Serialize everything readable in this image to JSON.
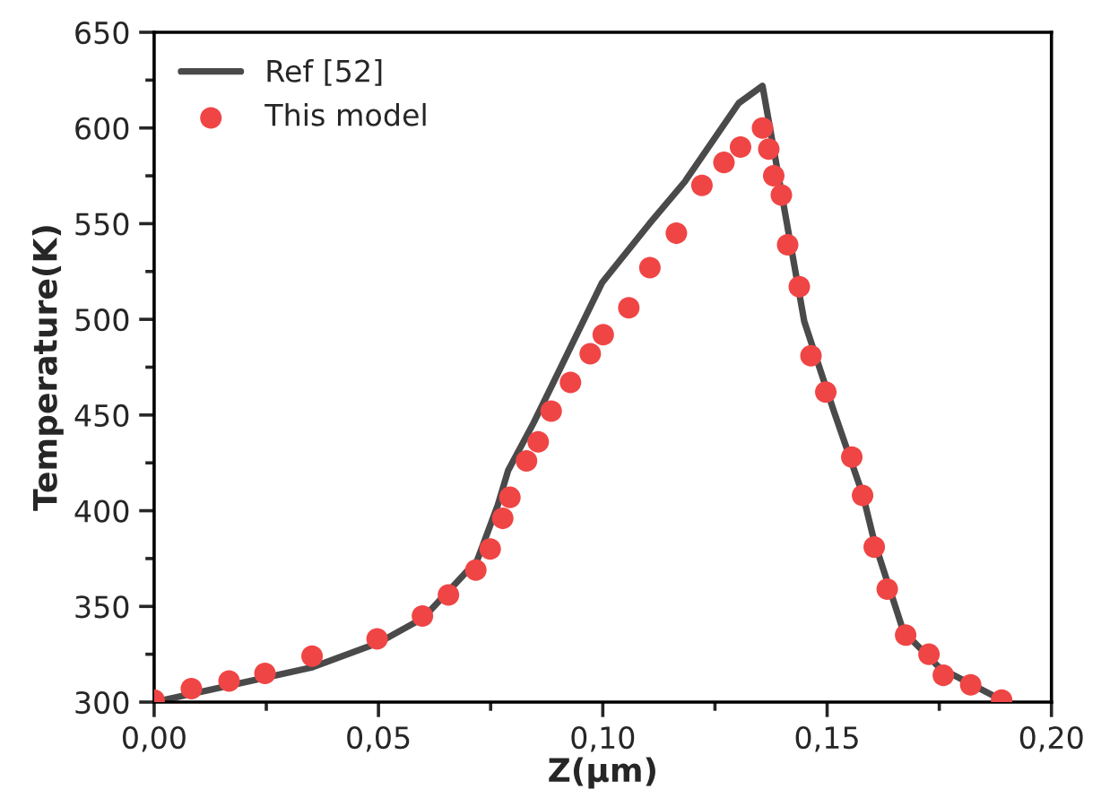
{
  "chart_data": {
    "type": "line",
    "xlabel": "Z(µm)",
    "ylabel": "Temperature(K)",
    "xlim": [
      0,
      0.2
    ],
    "ylim": [
      300,
      650
    ],
    "xticks": [
      {
        "value": 0,
        "label": "0,00"
      },
      {
        "value": 0.05,
        "label": "0,05"
      },
      {
        "value": 0.1,
        "label": "0,10"
      },
      {
        "value": 0.15,
        "label": "0,15"
      },
      {
        "value": 0.2,
        "label": "0,20"
      }
    ],
    "yticks": [
      300,
      350,
      400,
      450,
      500,
      550,
      600,
      650
    ],
    "grid": false,
    "legend": "top left",
    "series": [
      {
        "name": "Ref [52]",
        "color": "#4a4a4a",
        "marker": "none",
        "line_style": "solid",
        "x": [
          0,
          0.035,
          0.05,
          0.06,
          0.072,
          0.0766,
          0.0789,
          0.0846,
          0.0892,
          0.0998,
          0.1104,
          0.1183,
          0.1303,
          0.1356,
          0.1449,
          0.1515,
          0.158,
          0.1605,
          0.167,
          0.175,
          0.189
        ],
        "values": [
          300,
          318,
          331,
          344,
          374,
          403,
          421,
          446,
          468,
          519,
          550,
          572,
          613,
          622,
          499,
          452,
          408,
          384,
          337,
          318,
          301
        ]
      },
      {
        "name": "This model",
        "type": "scatter",
        "color": "#f04545",
        "marker": "circle",
        "x": [
          0,
          0.0083,
          0.0167,
          0.0247,
          0.0352,
          0.0497,
          0.0598,
          0.0656,
          0.0717,
          0.0749,
          0.0777,
          0.0793,
          0.083,
          0.0856,
          0.0885,
          0.0928,
          0.0972,
          0.1001,
          0.1058,
          0.1105,
          0.1164,
          0.1221,
          0.127,
          0.1307,
          0.1356,
          0.137,
          0.1381,
          0.1398,
          0.1412,
          0.1438,
          0.1464,
          0.1497,
          0.1555,
          0.1579,
          0.1605,
          0.1634,
          0.1675,
          0.1727,
          0.1759,
          0.182,
          0.1889
        ],
        "values": [
          301,
          307,
          311,
          315,
          324,
          333,
          345,
          356,
          369,
          380,
          396,
          407,
          426,
          436,
          452,
          467,
          482,
          492,
          506,
          527,
          545,
          570,
          582,
          590,
          600,
          589,
          575,
          565,
          539,
          517,
          481,
          462,
          428,
          408,
          381,
          359,
          335,
          325,
          314,
          309,
          301
        ]
      }
    ]
  }
}
